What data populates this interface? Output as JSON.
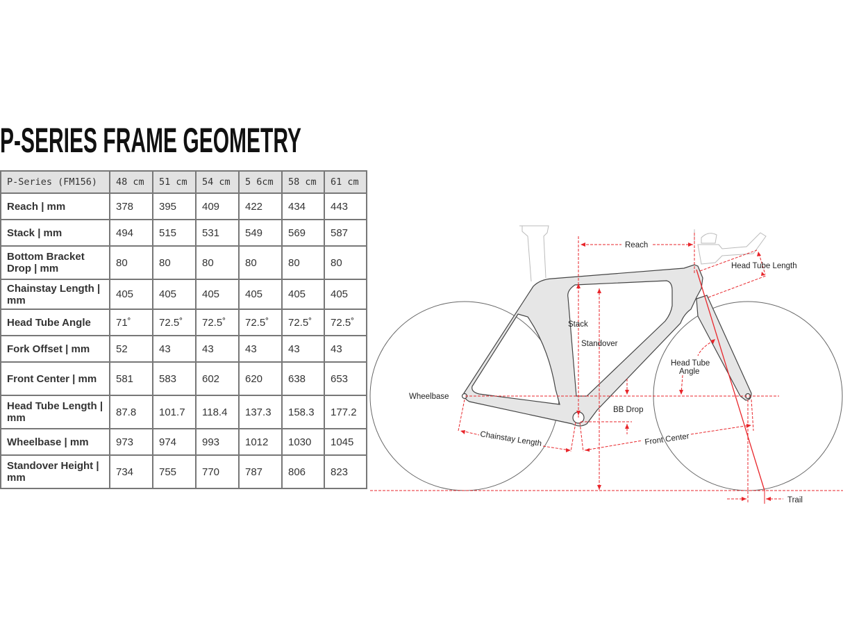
{
  "title": "P-SERIES FRAME GEOMETRY",
  "table": {
    "headers": [
      "P-Series (FM156)",
      "48 cm",
      "51 cm",
      "54 cm",
      "5 6cm",
      "58 cm",
      "61 cm"
    ],
    "rows": [
      {
        "label": "Reach | mm",
        "values": [
          "378",
          "395",
          "409",
          "422",
          "434",
          "443"
        ]
      },
      {
        "label": "Stack | mm",
        "values": [
          "494",
          "515",
          "531",
          "549",
          "569",
          "587"
        ]
      },
      {
        "label": "Bottom Bracket Drop | mm",
        "values": [
          "80",
          "80",
          "80",
          "80",
          "80",
          "80"
        ]
      },
      {
        "label": "Chainstay Length | mm",
        "values": [
          "405",
          "405",
          "405",
          "405",
          "405",
          "405"
        ]
      },
      {
        "label": "Head Tube Angle",
        "values": [
          "71˚",
          "72.5˚",
          "72.5˚",
          "72.5˚",
          "72.5˚",
          "72.5˚"
        ]
      },
      {
        "label": "Fork Offset | mm",
        "values": [
          "52",
          "43",
          "43",
          "43",
          "43",
          "43"
        ]
      },
      {
        "label": "Front Center | mm",
        "values": [
          "581",
          "583",
          "602",
          "620",
          "638",
          "653"
        ]
      },
      {
        "label": "Head Tube Length | mm",
        "values": [
          "87.8",
          "101.7",
          "118.4",
          "137.3",
          "158.3",
          "177.2"
        ]
      },
      {
        "label": "Wheelbase | mm",
        "values": [
          "973",
          "974",
          "993",
          "1012",
          "1030",
          "1045"
        ]
      },
      {
        "label": "Standover Height | mm",
        "values": [
          "734",
          "755",
          "770",
          "787",
          "806",
          "823"
        ]
      }
    ]
  },
  "diagram": {
    "labels": {
      "reach": "Reach",
      "head_tube_length": "Head Tube Length",
      "stack": "Stack",
      "standover": "Standover",
      "head_tube_angle_1": "Head Tube",
      "head_tube_angle_2": "Angle",
      "wheelbase": "Wheelbase",
      "bb_drop": "BB Drop",
      "front_center": "Front Center",
      "chainstay_length": "Chainstay Length",
      "trail": "Trail"
    },
    "colors": {
      "dimension": "#e8262b",
      "frame_fill": "#e6e6e6",
      "outline": "#444444"
    }
  }
}
